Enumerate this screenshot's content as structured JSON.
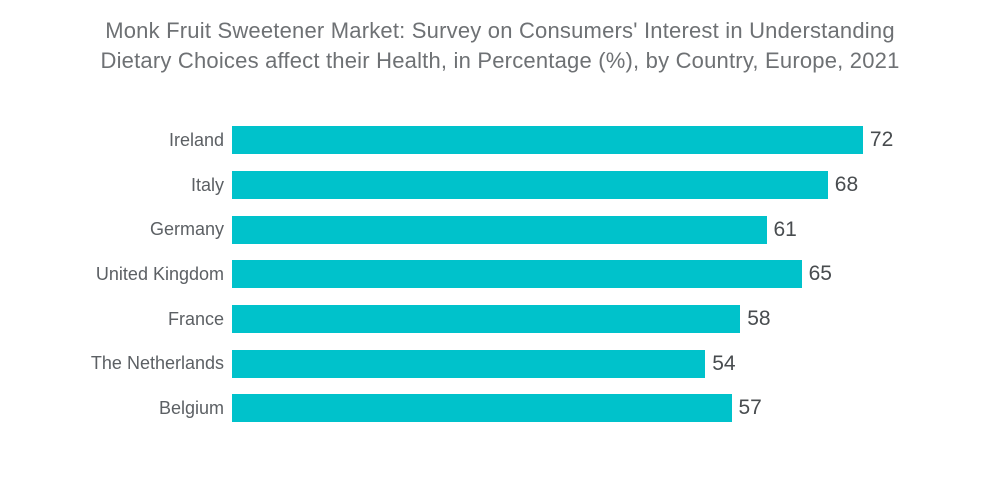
{
  "title_lines": [
    "Monk Fruit Sweetener Market: Survey on Consumers' Interest in Understanding",
    "Dietary Choices affect their Health, in Percentage (%), by Country, Europe, 2021"
  ],
  "chart_data": {
    "type": "bar",
    "orientation": "horizontal",
    "title": "Monk Fruit Sweetener Market: Survey on Consumers' Interest in Understanding Dietary Choices affect their Health, in Percentage (%), by Country, Europe, 2021",
    "categories": [
      "Ireland",
      "Italy",
      "Germany",
      "United Kingdom",
      "France",
      "The Netherlands",
      "Belgium"
    ],
    "values": [
      72,
      68,
      61,
      65,
      58,
      54,
      57
    ],
    "unit": "%",
    "xlabel": "",
    "ylabel": "",
    "xlim": [
      0,
      80
    ],
    "grid": false,
    "legend": false,
    "value_labels": true,
    "bar_color": "#00C2CB"
  },
  "colors": {
    "background": "#ffffff",
    "title_text": "#6E7174",
    "category_text": "#5C6064",
    "value_text": "#484C4F",
    "accent": "#00C2CB"
  }
}
